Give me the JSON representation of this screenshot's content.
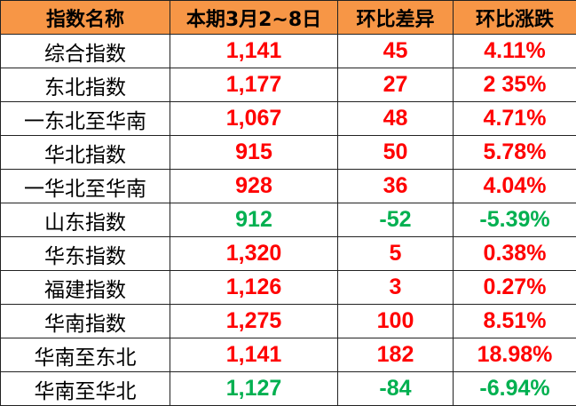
{
  "colors": {
    "header_bg": "#F79646",
    "up": "#FF0000",
    "down": "#00B050"
  },
  "headers": [
    "指数名称",
    "本期3月2~8日",
    "环比差异",
    "环比涨跌"
  ],
  "rows": [
    {
      "name": "综合指数",
      "value": "1,141",
      "diff": "45",
      "pct": "4.11%",
      "trend": "up"
    },
    {
      "name": "东北指数",
      "value": "1,177",
      "diff": "27",
      "pct": "2 35%",
      "trend": "up"
    },
    {
      "name": "一东北至华南",
      "value": "1,067",
      "diff": "48",
      "pct": "4.71%",
      "trend": "up"
    },
    {
      "name": "华北指数",
      "value": "915",
      "diff": "50",
      "pct": "5.78%",
      "trend": "up"
    },
    {
      "name": "一华北至华南",
      "value": "928",
      "diff": "36",
      "pct": "4.04%",
      "trend": "up"
    },
    {
      "name": "山东指数",
      "value": "912",
      "diff": "-52",
      "pct": "-5.39%",
      "trend": "down"
    },
    {
      "name": "华东指数",
      "value": "1,320",
      "diff": "5",
      "pct": "0.38%",
      "trend": "up"
    },
    {
      "name": "福建指数",
      "value": "1,126",
      "diff": "3",
      "pct": "0.27%",
      "trend": "up"
    },
    {
      "name": "华南指数",
      "value": "1,275",
      "diff": "100",
      "pct": "8.51%",
      "trend": "up"
    },
    {
      "name": "华南至东北",
      "value": "1,141",
      "diff": "182",
      "pct": "18.98%",
      "trend": "up"
    },
    {
      "name": "华南至华北",
      "value": "1,127",
      "diff": "-84",
      "pct": "-6.94%",
      "trend": "down"
    }
  ]
}
